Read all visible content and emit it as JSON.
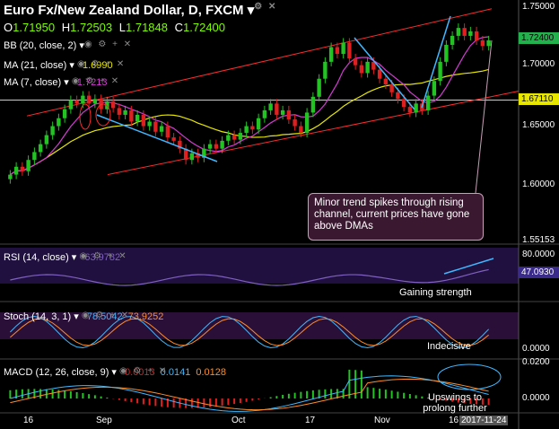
{
  "header": {
    "title": "Euro Fx/New Zealand Dollar, D, FXCM",
    "ohlc": [
      {
        "label": "O",
        "value": "1.71950"
      },
      {
        "label": "H",
        "value": "1.72503"
      },
      {
        "label": "L",
        "value": "1.71848"
      },
      {
        "label": "C",
        "value": "1.72400"
      }
    ]
  },
  "indicators": {
    "bb": {
      "label": "BB (20, close, 2)"
    },
    "ma21": {
      "label": "MA (21, close)",
      "value": "1.6990",
      "color": "#e6e600"
    },
    "ma7": {
      "label": "MA (7, close)",
      "value": "1.7213",
      "color": "#d23cd2"
    },
    "rsi": {
      "label": "RSI (14, close)",
      "value": "63.9782",
      "tag": "47.0930",
      "level": "80.0000"
    },
    "stoch": {
      "label": "Stoch (14, 3, 1)",
      "k": "78.5042",
      "d": "73.9252",
      "level": "0.0000"
    },
    "macd": {
      "label": "MACD (12, 26, close, 9)",
      "hist": "0.0013",
      "macd": "0.0141",
      "signal": "0.0128",
      "top": "0.0200",
      "zero": "0.0000"
    }
  },
  "price_axis": {
    "ticks": [
      "1.75000",
      "1.70000",
      "1.65000",
      "1.60000",
      "1.55153"
    ],
    "current_tag": "1.72400",
    "hline_tag": "1.67110"
  },
  "x_axis": {
    "labels": [
      "16",
      "Sep",
      "Oct",
      "17",
      "Nov",
      "16"
    ],
    "date_tag": "2017-11-24"
  },
  "annotations": {
    "note": "Minor trend spikes through rising channel, current prices have gone above DMAs",
    "rsi_note": "Gaining strength",
    "stoch_note": "Indecisive",
    "macd_note": "Upswings to prolong further"
  },
  "colors": {
    "up": "#22c322",
    "down": "#e02020",
    "bb": "#ff2a2a",
    "ma21": "#e6e600",
    "ma7": "#d23cd2",
    "trend": "#3fb8ff",
    "rsi": "#8060c0"
  },
  "chart_data": {
    "type": "line",
    "title": "Euro Fx/New Zealand Dollar, D, FXCM",
    "ylim": [
      1.545,
      1.755
    ],
    "candles_close": [
      1.605,
      1.612,
      1.608,
      1.618,
      1.625,
      1.632,
      1.64,
      1.648,
      1.655,
      1.663,
      1.671,
      1.668,
      1.675,
      1.668,
      1.672,
      1.663,
      1.67,
      1.664,
      1.658,
      1.662,
      1.652,
      1.658,
      1.648,
      1.652,
      1.643,
      1.648,
      1.638,
      1.635,
      1.628,
      1.618,
      1.624,
      1.62,
      1.628,
      1.632,
      1.628,
      1.635,
      1.64,
      1.636,
      1.642,
      1.648,
      1.645,
      1.655,
      1.662,
      1.668,
      1.658,
      1.662,
      1.654,
      1.648,
      1.642,
      1.66,
      1.674,
      1.69,
      1.705,
      1.718,
      1.712,
      1.722,
      1.708,
      1.702,
      1.695,
      1.705,
      1.698,
      1.69,
      1.685,
      1.678,
      1.672,
      1.665,
      1.66,
      1.668,
      1.662,
      1.675,
      1.688,
      1.705,
      1.72,
      1.728,
      1.735,
      1.728,
      1.732,
      1.724,
      1.719,
      1.724
    ],
    "ma21_last": 1.699,
    "ma7_last": 1.7213,
    "hline": 1.6711
  }
}
